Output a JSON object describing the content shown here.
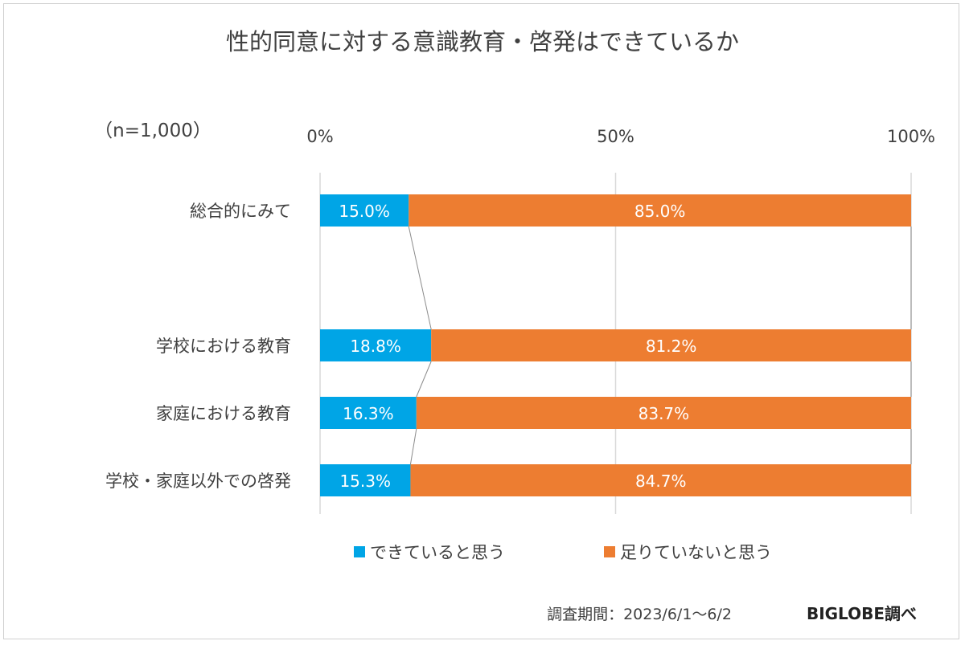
{
  "chart_data": {
    "type": "bar",
    "stacked": true,
    "orientation": "horizontal",
    "title": "性的同意に対する意識教育・啓発はできているか",
    "sample_note": "（n=1,000）",
    "categories": [
      "総合的にみて",
      "学校における教育",
      "家庭における教育",
      "学校・家庭以外での啓発"
    ],
    "series": [
      {
        "name": "できていると思う",
        "color": "#00A5E6",
        "values": [
          15.0,
          18.8,
          16.3,
          15.3
        ],
        "labels": [
          "15.0%",
          "18.8%",
          "16.3%",
          "15.3%"
        ]
      },
      {
        "name": "足りていないと思う",
        "color": "#ED7D31",
        "values": [
          85.0,
          81.2,
          83.7,
          84.7
        ],
        "labels": [
          "85.0%",
          "81.2%",
          "83.7%",
          "84.7%"
        ]
      }
    ],
    "xlim": [
      0,
      100
    ],
    "x_ticks": [
      "0%",
      "50%",
      "100%"
    ],
    "x_axis_position": "top",
    "grid": true,
    "series_lines": true,
    "legend": "bottom"
  },
  "footer": {
    "period": "調査期間：2023/6/1～6/2",
    "source": "BIGLOBE調べ"
  }
}
